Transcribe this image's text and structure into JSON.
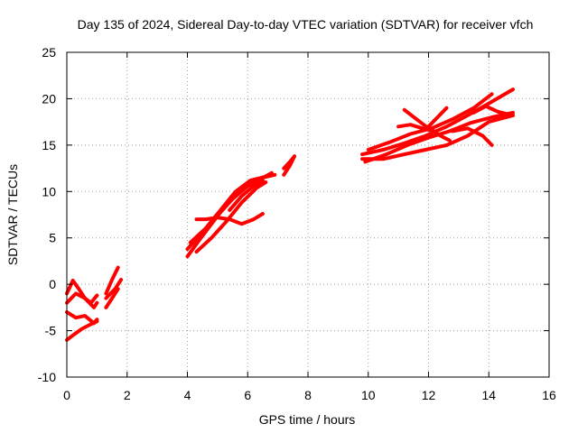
{
  "chart_data": {
    "type": "line",
    "title": "Day 135 of 2024, Sidereal Day-to-day VTEC variation (SDTVAR) for receiver vfch",
    "xlabel": "GPS time / hours",
    "ylabel": "SDTVAR / TECUs",
    "xlim": [
      0,
      16
    ],
    "ylim": [
      -10,
      25
    ],
    "xticks": [
      0,
      2,
      4,
      6,
      8,
      10,
      12,
      14,
      16
    ],
    "yticks": [
      -10,
      -5,
      0,
      5,
      10,
      15,
      20,
      25
    ],
    "xtick_labels": [
      "0",
      "2",
      "4",
      "6",
      "8",
      "10",
      "12",
      "14",
      "16"
    ],
    "ytick_labels": [
      "-10",
      "-5",
      "0",
      "5",
      "10",
      "15",
      "20",
      "25"
    ],
    "grid": true,
    "color": "#ff0000",
    "series": [
      {
        "x": [
          0.0,
          0.2,
          0.4,
          0.6,
          0.8,
          1.0
        ],
        "y": [
          -1.0,
          0.4,
          -0.5,
          -1.5,
          -2.0,
          -1.2
        ]
      },
      {
        "x": [
          0.0,
          0.3,
          0.6,
          0.9,
          1.0
        ],
        "y": [
          -2.0,
          -1.0,
          -1.5,
          -2.5,
          -2.0
        ]
      },
      {
        "x": [
          0.0,
          0.3,
          0.6,
          0.9,
          1.0
        ],
        "y": [
          -3.0,
          -3.6,
          -3.4,
          -4.2,
          -3.8
        ]
      },
      {
        "x": [
          0.0,
          0.2,
          0.5,
          0.8,
          1.0
        ],
        "y": [
          -6.0,
          -5.5,
          -4.8,
          -4.3,
          -4.0
        ]
      },
      {
        "x": [
          1.3,
          1.5,
          1.7
        ],
        "y": [
          -1.0,
          0.5,
          1.8
        ]
      },
      {
        "x": [
          1.3,
          1.5,
          1.7
        ],
        "y": [
          -2.5,
          -1.5,
          -0.5
        ]
      },
      {
        "x": [
          1.3,
          1.6,
          1.8
        ],
        "y": [
          -1.5,
          -0.5,
          0.5
        ]
      },
      {
        "x": [
          4.0,
          4.4,
          4.8,
          5.2,
          5.6,
          6.0,
          6.4,
          6.8
        ],
        "y": [
          3.0,
          4.8,
          6.5,
          8.2,
          9.6,
          10.6,
          11.3,
          12.0
        ]
      },
      {
        "x": [
          4.0,
          4.5,
          5.0,
          5.5,
          6.0,
          6.5,
          6.9
        ],
        "y": [
          3.8,
          5.6,
          7.4,
          9.2,
          10.6,
          11.5,
          11.8
        ]
      },
      {
        "x": [
          4.1,
          4.6,
          5.1,
          5.6,
          6.1,
          6.6
        ],
        "y": [
          4.5,
          6.0,
          8.0,
          10.0,
          11.2,
          11.6
        ]
      },
      {
        "x": [
          4.3,
          4.8,
          5.3,
          5.8,
          6.3,
          6.6
        ],
        "y": [
          3.5,
          5.0,
          6.8,
          8.8,
          10.4,
          11.0
        ]
      },
      {
        "x": [
          4.3,
          4.6,
          5.0,
          5.4,
          5.8,
          6.2,
          6.5
        ],
        "y": [
          7.0,
          7.0,
          7.2,
          7.0,
          6.5,
          7.0,
          7.6
        ]
      },
      {
        "x": [
          5.4,
          5.8,
          6.2,
          6.5
        ],
        "y": [
          8.0,
          9.5,
          10.6,
          11.2
        ]
      },
      {
        "x": [
          7.2,
          7.4,
          7.55
        ],
        "y": [
          11.8,
          12.8,
          13.8
        ]
      },
      {
        "x": [
          7.2,
          7.4,
          7.55
        ],
        "y": [
          12.5,
          13.2,
          13.8
        ]
      },
      {
        "x": [
          9.8,
          10.5,
          11.2,
          11.9,
          12.6,
          13.3,
          14.0,
          14.8
        ],
        "y": [
          13.5,
          13.5,
          14.0,
          14.5,
          15.0,
          16.0,
          17.5,
          18.2
        ]
      },
      {
        "x": [
          9.8,
          10.5,
          11.2,
          11.9,
          12.6,
          13.3,
          14.0,
          14.8
        ],
        "y": [
          14.0,
          14.5,
          15.2,
          16.0,
          17.0,
          18.2,
          19.5,
          21.0
        ]
      },
      {
        "x": [
          9.9,
          10.6,
          11.3,
          12.0,
          12.7,
          13.4,
          14.1,
          14.8
        ],
        "y": [
          13.2,
          14.0,
          15.0,
          15.8,
          16.5,
          17.4,
          18.0,
          18.5
        ]
      },
      {
        "x": [
          10.0,
          10.7,
          11.4,
          12.1,
          12.8,
          13.5,
          14.1
        ],
        "y": [
          14.5,
          15.3,
          16.2,
          16.8,
          17.8,
          19.0,
          20.5
        ]
      },
      {
        "x": [
          11.0,
          11.4,
          11.8,
          12.2
        ],
        "y": [
          17.0,
          17.2,
          16.8,
          16.5
        ]
      },
      {
        "x": [
          11.2,
          11.6,
          12.0,
          12.4,
          12.7
        ],
        "y": [
          18.8,
          17.8,
          16.8,
          16.0,
          15.5
        ]
      },
      {
        "x": [
          12.0,
          12.3,
          12.6
        ],
        "y": [
          17.0,
          18.0,
          19.0
        ]
      },
      {
        "x": [
          12.8,
          13.3,
          13.8,
          14.1
        ],
        "y": [
          16.5,
          16.8,
          16.0,
          15.0
        ]
      },
      {
        "x": [
          13.5,
          13.9,
          14.3,
          14.8
        ],
        "y": [
          18.5,
          19.2,
          18.6,
          18.2
        ]
      }
    ]
  }
}
